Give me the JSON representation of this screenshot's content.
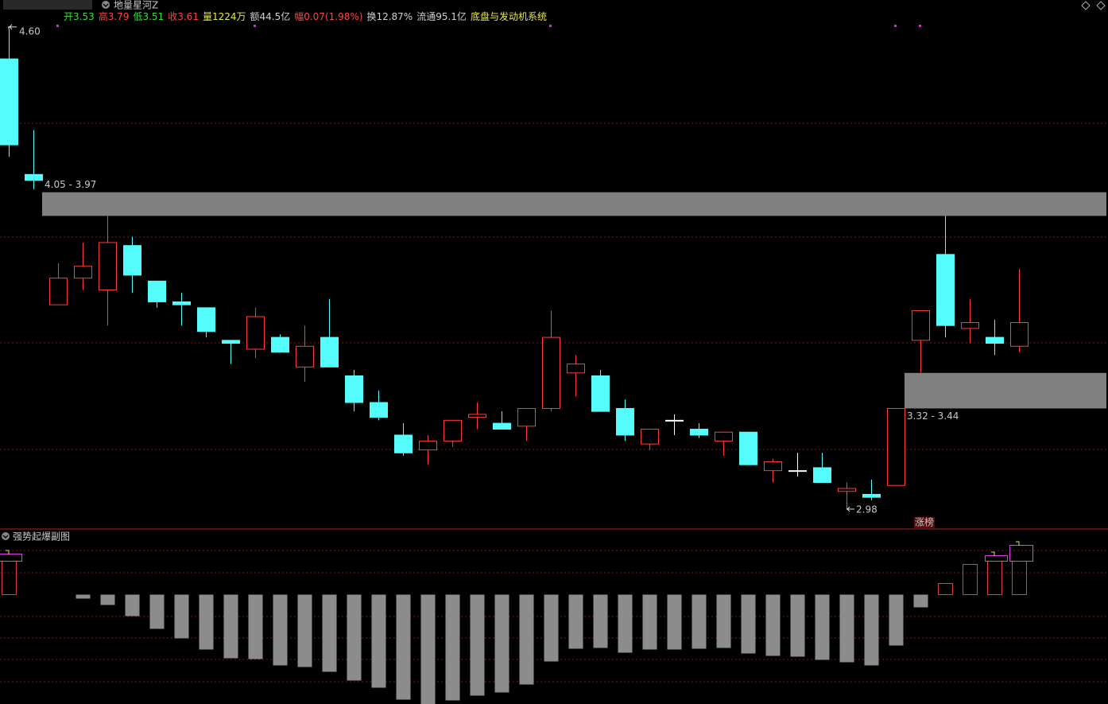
{
  "header": {
    "indicator": "地量星河Z",
    "quote": [
      {
        "text": "开3.53",
        "color": "#3cdc3c"
      },
      {
        "text": "高3.79",
        "color": "#ff4444"
      },
      {
        "text": "低3.51",
        "color": "#3cdc3c"
      },
      {
        "text": "收3.61",
        "color": "#ff4444"
      },
      {
        "text": "量1224万",
        "color": "#e8e84a"
      },
      {
        "text": "额44.5亿",
        "color": "#d0d0d0"
      },
      {
        "text": "幅0.07(1.98%)",
        "color": "#ff4444"
      },
      {
        "text": "换12.87%",
        "color": "#d0d0d0"
      },
      {
        "text": "流通95.1亿",
        "color": "#d0d0d0"
      },
      {
        "text": "底盘与发动机系统",
        "color": "#e8e84a"
      }
    ]
  },
  "chart_data": [
    {
      "type": "candlestick",
      "open": [
        4.5,
        4.11,
        3.67,
        3.76,
        3.72,
        3.87,
        3.75,
        3.68,
        3.66,
        3.55,
        3.52,
        3.56,
        3.46,
        3.56,
        3.43,
        3.34,
        3.23,
        3.18,
        3.21,
        3.29,
        3.27,
        3.26,
        3.32,
        3.44,
        3.43,
        3.32,
        3.2,
        3.28,
        3.25,
        3.21,
        3.24,
        3.11,
        3.11,
        3.12,
        3.04,
        3.03,
        3.06,
        3.55,
        3.84,
        3.59,
        3.56,
        3.53
      ],
      "high": [
        4.6,
        4.26,
        3.81,
        3.88,
        3.97,
        3.9,
        3.75,
        3.71,
        3.66,
        3.55,
        3.66,
        3.57,
        3.6,
        3.69,
        3.45,
        3.38,
        3.27,
        3.23,
        3.28,
        3.34,
        3.31,
        3.32,
        3.65,
        3.5,
        3.45,
        3.35,
        3.25,
        3.3,
        3.27,
        3.24,
        3.24,
        3.15,
        3.17,
        3.17,
        3.07,
        3.08,
        3.32,
        3.65,
        3.97,
        3.69,
        3.62,
        3.79
      ],
      "low": [
        4.17,
        4.06,
        3.67,
        3.72,
        3.6,
        3.71,
        3.66,
        3.6,
        3.56,
        3.47,
        3.49,
        3.51,
        3.41,
        3.46,
        3.31,
        3.28,
        3.16,
        3.13,
        3.19,
        3.25,
        3.25,
        3.21,
        3.31,
        3.36,
        3.31,
        3.21,
        3.18,
        3.23,
        3.22,
        3.16,
        3.13,
        3.07,
        3.09,
        3.07,
        2.98,
        3.01,
        3.06,
        3.44,
        3.56,
        3.54,
        3.5,
        3.51
      ],
      "close": [
        4.21,
        4.09,
        3.76,
        3.8,
        3.88,
        3.77,
        3.68,
        3.67,
        3.58,
        3.54,
        3.63,
        3.51,
        3.53,
        3.46,
        3.34,
        3.29,
        3.17,
        3.21,
        3.28,
        3.3,
        3.25,
        3.32,
        3.56,
        3.47,
        3.31,
        3.23,
        3.25,
        3.28,
        3.23,
        3.24,
        3.13,
        3.14,
        3.11,
        3.07,
        3.05,
        3.02,
        3.32,
        3.65,
        3.6,
        3.61,
        3.54,
        3.61
      ],
      "up_color": "#ff3c3c",
      "down_color": "#54fcfc",
      "flat_color": "#ffffff",
      "ylim": [
        2.913,
        4.699
      ],
      "zones": [
        {
          "label": "4.05 - 3.97",
          "high": 4.05,
          "low": 3.97,
          "from": 1,
          "label_side": "above",
          "color": "#808080"
        },
        {
          "label": "3.32 - 3.44",
          "low": 3.32,
          "high": 3.44,
          "from": 36,
          "label_side": "below",
          "color": "#808080"
        }
      ],
      "annotations": [
        {
          "text": "4.60",
          "value": 4.6,
          "index": 0,
          "side": "high"
        },
        {
          "text": "2.98",
          "value": 2.98,
          "index": 34,
          "side": "low"
        }
      ],
      "markers": [
        {
          "text": "涨榜",
          "index": 37
        }
      ]
    },
    {
      "type": "bar",
      "title": "强势起爆副图",
      "values": [
        4.2,
        null,
        null,
        -0.5,
        -1.3,
        -2.7,
        -4.3,
        -5.5,
        -6.9,
        -8.0,
        -8.1,
        -8.9,
        -9.1,
        -9.7,
        -10.8,
        -11.7,
        -13.2,
        -14.0,
        -13.3,
        -12.7,
        -12.3,
        -11.3,
        -8.4,
        -6.8,
        -6.7,
        -7.3,
        -6.9,
        -6.9,
        -6.8,
        -6.7,
        -7.4,
        -7.7,
        -7.8,
        -8.2,
        -8.5,
        -8.9,
        -6.4,
        -1.6,
        1.4,
        3.8,
        4.2,
        4.2
      ],
      "signal": [
        0.9,
        null,
        null,
        null,
        null,
        null,
        null,
        null,
        null,
        null,
        null,
        null,
        null,
        null,
        null,
        null,
        null,
        null,
        null,
        null,
        null,
        null,
        null,
        null,
        null,
        null,
        null,
        null,
        null,
        null,
        null,
        null,
        null,
        null,
        null,
        null,
        null,
        null,
        null,
        null,
        0.7,
        2.0
      ],
      "positive_color": "#e03c3c",
      "negative_color": "#8c8c8c",
      "signal_color": "#e040e0",
      "ylim": [
        -13.8,
        8.2
      ]
    }
  ]
}
